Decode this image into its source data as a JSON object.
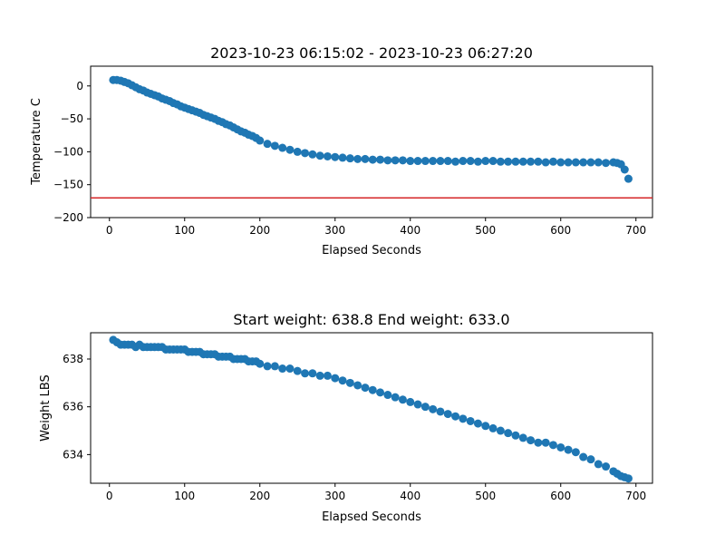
{
  "chart_data": [
    {
      "type": "scatter",
      "title": "2023-10-23 06:15:02 - 2023-10-23 06:27:20",
      "xlabel": "Elapsed Seconds",
      "ylabel": "Temperature C",
      "xlim": [
        -25,
        722
      ],
      "ylim": [
        -200,
        30
      ],
      "xticks": [
        0,
        100,
        200,
        300,
        400,
        500,
        600,
        700
      ],
      "yticks": [
        0,
        -50,
        -100,
        -150,
        -200
      ],
      "xtick_labels": [
        "0",
        "100",
        "200",
        "300",
        "400",
        "500",
        "600",
        "700"
      ],
      "ytick_labels": [
        "0",
        "−50",
        "−100",
        "−150",
        "−200"
      ],
      "grid": false,
      "marker_color": "#1f77b4",
      "hline": {
        "y": -170,
        "color": "#d62728"
      },
      "series": [
        {
          "x": [
            5,
            10,
            15,
            20,
            25,
            30,
            35,
            40,
            45,
            50,
            55,
            60,
            65,
            70,
            75,
            80,
            85,
            90,
            95,
            100,
            105,
            110,
            115,
            120,
            125,
            130,
            135,
            140,
            145,
            150,
            155,
            160,
            165,
            170,
            175,
            180,
            185,
            190,
            195,
            200,
            210,
            220,
            230,
            240,
            250,
            260,
            270,
            280,
            290,
            300,
            310,
            320,
            330,
            340,
            350,
            360,
            370,
            380,
            390,
            400,
            410,
            420,
            430,
            440,
            450,
            460,
            470,
            480,
            490,
            500,
            510,
            520,
            530,
            540,
            550,
            560,
            570,
            580,
            590,
            600,
            610,
            620,
            630,
            640,
            650,
            660,
            670,
            675,
            680,
            685,
            690
          ],
          "y": [
            9,
            9,
            8,
            6,
            4,
            1,
            -2,
            -5,
            -7,
            -10,
            -12,
            -14,
            -16,
            -19,
            -21,
            -23,
            -26,
            -28,
            -31,
            -33,
            -35,
            -37,
            -39,
            -41,
            -44,
            -46,
            -48,
            -50,
            -53,
            -55,
            -58,
            -60,
            -63,
            -66,
            -69,
            -71,
            -74,
            -76,
            -79,
            -83,
            -88,
            -91,
            -94,
            -97,
            -100,
            -102,
            -104,
            -106,
            -107,
            -108,
            -109,
            -110,
            -111,
            -111,
            -112,
            -112,
            -113,
            -113,
            -113,
            -114,
            -114,
            -114,
            -114,
            -114,
            -114,
            -115,
            -114,
            -114,
            -115,
            -114,
            -114,
            -115,
            -115,
            -115,
            -115,
            -115,
            -115,
            -116,
            -115,
            -116,
            -116,
            -116,
            -116,
            -116,
            -116,
            -117,
            -116,
            -117,
            -119,
            -127,
            -141
          ]
        }
      ]
    },
    {
      "type": "scatter",
      "title": "Start weight: 638.8 End weight: 633.0",
      "xlabel": "Elapsed Seconds",
      "ylabel": "Weight LBS",
      "xlim": [
        -25,
        722
      ],
      "ylim": [
        632.8,
        639.1
      ],
      "xticks": [
        0,
        100,
        200,
        300,
        400,
        500,
        600,
        700
      ],
      "yticks": [
        634,
        636,
        638
      ],
      "xtick_labels": [
        "0",
        "100",
        "200",
        "300",
        "400",
        "500",
        "600",
        "700"
      ],
      "ytick_labels": [
        "634",
        "636",
        "638"
      ],
      "grid": false,
      "marker_color": "#1f77b4",
      "series": [
        {
          "x": [
            5,
            10,
            15,
            20,
            25,
            30,
            35,
            40,
            45,
            50,
            55,
            60,
            65,
            70,
            75,
            80,
            85,
            90,
            95,
            100,
            105,
            110,
            115,
            120,
            125,
            130,
            135,
            140,
            145,
            150,
            155,
            160,
            165,
            170,
            175,
            180,
            185,
            190,
            195,
            200,
            210,
            220,
            230,
            240,
            250,
            260,
            270,
            280,
            290,
            300,
            310,
            320,
            330,
            340,
            350,
            360,
            370,
            380,
            390,
            400,
            410,
            420,
            430,
            440,
            450,
            460,
            470,
            480,
            490,
            500,
            510,
            520,
            530,
            540,
            550,
            560,
            570,
            580,
            590,
            600,
            610,
            620,
            630,
            640,
            650,
            660,
            670,
            675,
            680,
            685,
            690
          ],
          "y": [
            638.8,
            638.7,
            638.6,
            638.6,
            638.6,
            638.6,
            638.5,
            638.6,
            638.5,
            638.5,
            638.5,
            638.5,
            638.5,
            638.5,
            638.4,
            638.4,
            638.4,
            638.4,
            638.4,
            638.4,
            638.3,
            638.3,
            638.3,
            638.3,
            638.2,
            638.2,
            638.2,
            638.2,
            638.1,
            638.1,
            638.1,
            638.1,
            638.0,
            638.0,
            638.0,
            638.0,
            637.9,
            637.9,
            637.9,
            637.8,
            637.7,
            637.7,
            637.6,
            637.6,
            637.5,
            637.4,
            637.4,
            637.3,
            637.3,
            637.2,
            637.1,
            637.0,
            636.9,
            636.8,
            636.7,
            636.6,
            636.5,
            636.4,
            636.3,
            636.2,
            636.1,
            636.0,
            635.9,
            635.8,
            635.7,
            635.6,
            635.5,
            635.4,
            635.3,
            635.2,
            635.1,
            635.0,
            634.9,
            634.8,
            634.7,
            634.6,
            634.5,
            634.5,
            634.4,
            634.3,
            634.2,
            634.1,
            633.9,
            633.8,
            633.6,
            633.5,
            633.3,
            633.2,
            633.1,
            633.05,
            633.0
          ]
        }
      ]
    }
  ]
}
